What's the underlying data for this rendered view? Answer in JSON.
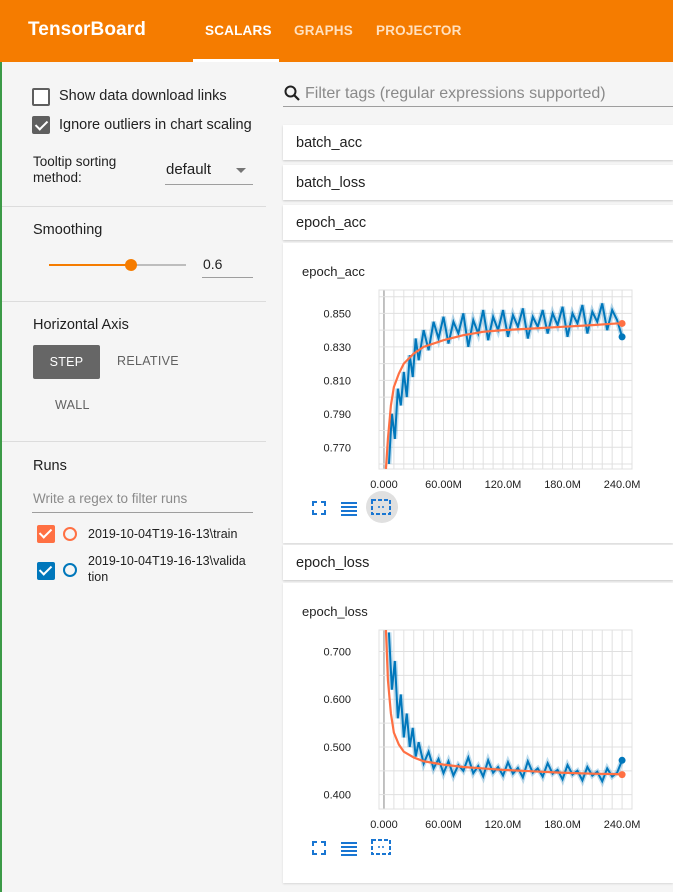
{
  "app": {
    "title": "TensorBoard"
  },
  "tabs": [
    {
      "label": "SCALARS",
      "active": true
    },
    {
      "label": "GRAPHS"
    },
    {
      "label": "PROJECTOR"
    }
  ],
  "sidebar": {
    "show_download_links": {
      "label": "Show data download links",
      "checked": false
    },
    "ignore_outliers": {
      "label": "Ignore outliers in chart scaling",
      "checked": true
    },
    "tooltip_sorting": {
      "label_line1": "Tooltip sorting",
      "label_line2": "method:",
      "value": "default"
    },
    "smoothing": {
      "label": "Smoothing",
      "value": "0.6",
      "fraction": 0.6
    },
    "horizontal_axis": {
      "label": "Horizontal Axis",
      "options": [
        "STEP",
        "RELATIVE",
        "WALL"
      ],
      "selected": "STEP"
    },
    "runs": {
      "label": "Runs",
      "filter_placeholder": "Write a regex to filter runs",
      "items": [
        {
          "name": "2019-10-04T19-16-13\\train",
          "color": "#ff7043",
          "checked": true
        },
        {
          "name_line1": "2019-10-04T19-16-13\\valida",
          "name_line2": "tion",
          "color": "#0077bb",
          "checked": true
        }
      ]
    }
  },
  "main": {
    "filter_placeholder": "Filter tags (regular expressions supported)",
    "tag_groups": [
      "batch_acc",
      "batch_loss",
      "epoch_acc",
      "epoch_loss"
    ]
  },
  "colors": {
    "accent": "#f57c00",
    "train": "#ff7043",
    "validation": "#0077bb"
  },
  "chart_data": [
    {
      "type": "line",
      "title": "epoch_acc",
      "x_ticks": [
        "0.000",
        "60.00M",
        "120.0M",
        "180.0M",
        "240.0M"
      ],
      "y_ticks": [
        "0.850",
        "0.830",
        "0.810",
        "0.790",
        "0.770"
      ],
      "xlim": [
        -5,
        250
      ],
      "ylim": [
        0.757,
        0.864
      ],
      "grid": true,
      "series": [
        {
          "name": "2019-10-04T19-16-13\\train",
          "color": "#ff7043",
          "x": [
            2,
            4,
            7,
            10,
            15,
            20,
            30,
            40,
            60,
            80,
            100,
            120,
            150,
            180,
            210,
            235,
            240
          ],
          "y": [
            0.757,
            0.775,
            0.795,
            0.806,
            0.814,
            0.82,
            0.826,
            0.83,
            0.834,
            0.837,
            0.839,
            0.84,
            0.841,
            0.842,
            0.843,
            0.844,
            0.844
          ]
        },
        {
          "name": "2019-10-04T19-16-13\\validation",
          "color": "#0077bb",
          "x": [
            5,
            8,
            11,
            14,
            17,
            20,
            23,
            26,
            29,
            32,
            35,
            40,
            45,
            50,
            55,
            60,
            65,
            70,
            75,
            80,
            85,
            90,
            95,
            100,
            105,
            110,
            115,
            120,
            125,
            130,
            135,
            140,
            145,
            150,
            155,
            160,
            165,
            170,
            175,
            180,
            185,
            190,
            195,
            200,
            205,
            210,
            215,
            220,
            225,
            230,
            235,
            240
          ],
          "y": [
            0.76,
            0.79,
            0.775,
            0.805,
            0.795,
            0.815,
            0.8,
            0.825,
            0.812,
            0.835,
            0.822,
            0.84,
            0.828,
            0.845,
            0.835,
            0.848,
            0.832,
            0.845,
            0.838,
            0.85,
            0.83,
            0.846,
            0.838,
            0.852,
            0.834,
            0.848,
            0.84,
            0.852,
            0.836,
            0.849,
            0.842,
            0.853,
            0.835,
            0.848,
            0.842,
            0.852,
            0.838,
            0.85,
            0.843,
            0.854,
            0.836,
            0.85,
            0.844,
            0.855,
            0.838,
            0.851,
            0.845,
            0.856,
            0.84,
            0.852,
            0.846,
            0.836
          ]
        }
      ]
    },
    {
      "type": "line",
      "title": "epoch_loss",
      "x_ticks": [
        "0.000",
        "60.00M",
        "120.0M",
        "180.0M",
        "240.0M"
      ],
      "y_ticks": [
        "0.700",
        "0.600",
        "0.500",
        "0.400"
      ],
      "xlim": [
        -5,
        250
      ],
      "ylim": [
        0.37,
        0.745
      ],
      "grid": true,
      "series": [
        {
          "name": "2019-10-04T19-16-13\\train",
          "color": "#ff7043",
          "x": [
            2,
            4,
            7,
            10,
            15,
            20,
            30,
            40,
            60,
            80,
            100,
            120,
            150,
            180,
            210,
            235,
            240
          ],
          "y": [
            0.745,
            0.64,
            0.57,
            0.53,
            0.505,
            0.49,
            0.478,
            0.47,
            0.463,
            0.458,
            0.455,
            0.452,
            0.449,
            0.446,
            0.444,
            0.443,
            0.442
          ]
        },
        {
          "name": "2019-10-04T19-16-13\\validation",
          "color": "#0077bb",
          "x": [
            5,
            8,
            11,
            14,
            17,
            20,
            23,
            26,
            29,
            32,
            35,
            40,
            45,
            50,
            55,
            60,
            65,
            70,
            75,
            80,
            85,
            90,
            95,
            100,
            105,
            110,
            115,
            120,
            125,
            130,
            135,
            140,
            145,
            150,
            155,
            160,
            165,
            170,
            175,
            180,
            185,
            190,
            195,
            200,
            205,
            210,
            215,
            220,
            225,
            230,
            235,
            240
          ],
          "y": [
            0.74,
            0.62,
            0.68,
            0.56,
            0.61,
            0.52,
            0.57,
            0.5,
            0.54,
            0.48,
            0.51,
            0.465,
            0.49,
            0.455,
            0.475,
            0.445,
            0.47,
            0.44,
            0.462,
            0.45,
            0.478,
            0.445,
            0.46,
            0.438,
            0.472,
            0.446,
            0.458,
            0.44,
            0.468,
            0.444,
            0.456,
            0.436,
            0.47,
            0.446,
            0.455,
            0.438,
            0.466,
            0.444,
            0.452,
            0.432,
            0.462,
            0.442,
            0.45,
            0.43,
            0.458,
            0.44,
            0.448,
            0.428,
            0.455,
            0.438,
            0.446,
            0.472
          ]
        }
      ]
    }
  ]
}
